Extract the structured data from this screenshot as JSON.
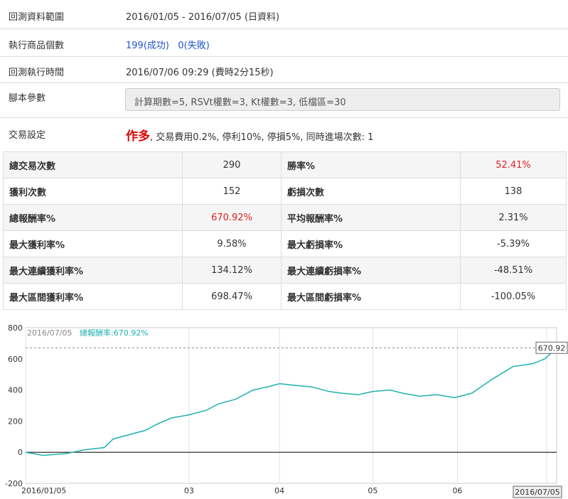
{
  "info": {
    "range_label": "回測資料範圍",
    "range_value": "2016/01/05 - 2016/07/05 (日資料)",
    "count_label": "執行商品個數",
    "count_success": "199(成功)",
    "count_fail": "0(失敗)",
    "time_label": "回測執行時間",
    "time_value": "2016/07/06 09:29 (費時2分15秒)",
    "params_label": "腳本參數",
    "params_value": "計算期數=5, RSVt權數=3, Kt權數=3, 低檔區=30",
    "trade_label": "交易設定",
    "trade_direction": "作多",
    "trade_rest": ", 交易費用0.2%, 停利10%, 停損5%, 同時進場次數: 1"
  },
  "stats": [
    {
      "k1": "總交易次數",
      "v1": "290",
      "k2": "勝率%",
      "v2": "52.41%"
    },
    {
      "k1": "獲利次數",
      "v1": "152",
      "k2": "虧損次數",
      "v2": "138"
    },
    {
      "k1": "總報酬率%",
      "v1": "670.92%",
      "k2": "平均報酬率%",
      "v2": "2.31%"
    },
    {
      "k1": "最大獲利率%",
      "v1": "9.58%",
      "k2": "最大虧損率%",
      "v2": "-5.39%"
    },
    {
      "k1": "最大連續獲利率%",
      "v1": "134.12%",
      "k2": "最大連續虧損率%",
      "v2": "-48.51%"
    },
    {
      "k1": "最大區間獲利率%",
      "v1": "698.47%",
      "k2": "最大區間虧損率%",
      "v2": "-100.05%"
    }
  ],
  "colors": {
    "line": "#20b0b0",
    "red": "#dd2222",
    "blue": "#2255cc"
  },
  "chart_data": {
    "type": "line",
    "header_date": "2016/07/05",
    "header_series": "總報酬率:670.92%",
    "last_value_label": "670.92",
    "cursor_date_label": "2016/07/05",
    "x_tick_labels": [
      "2016/01/05",
      "03",
      "04",
      "05",
      "06"
    ],
    "x_tick_dates": [
      "2016-01-05",
      "2016-03-01",
      "2016-04-01",
      "2016-05-03",
      "2016-06-01"
    ],
    "y_ticks": [
      -200,
      0,
      200,
      400,
      600,
      800
    ],
    "ylim": [
      -200,
      800
    ],
    "xlim": [
      "2016-01-05",
      "2016-07-05"
    ],
    "grid": true,
    "series": [
      {
        "x": [
          "2016-01-05",
          "2016-01-11",
          "2016-01-19",
          "2016-01-25",
          "2016-02-01",
          "2016-02-04",
          "2016-02-15",
          "2016-02-19",
          "2016-02-24",
          "2016-03-01",
          "2016-03-07",
          "2016-03-11",
          "2016-03-17",
          "2016-03-23",
          "2016-03-28",
          "2016-04-01",
          "2016-04-06",
          "2016-04-12",
          "2016-04-18",
          "2016-04-22",
          "2016-04-28",
          "2016-05-03",
          "2016-05-09",
          "2016-05-13",
          "2016-05-19",
          "2016-05-25",
          "2016-05-31",
          "2016-06-06",
          "2016-06-13",
          "2016-06-20",
          "2016-06-27",
          "2016-07-01",
          "2016-07-05"
        ],
        "values": [
          0,
          -20,
          -8,
          15,
          30,
          85,
          140,
          180,
          220,
          240,
          270,
          310,
          340,
          400,
          420,
          440,
          430,
          420,
          390,
          380,
          370,
          390,
          400,
          380,
          360,
          370,
          350,
          380,
          470,
          550,
          570,
          600,
          670.92
        ]
      }
    ]
  }
}
